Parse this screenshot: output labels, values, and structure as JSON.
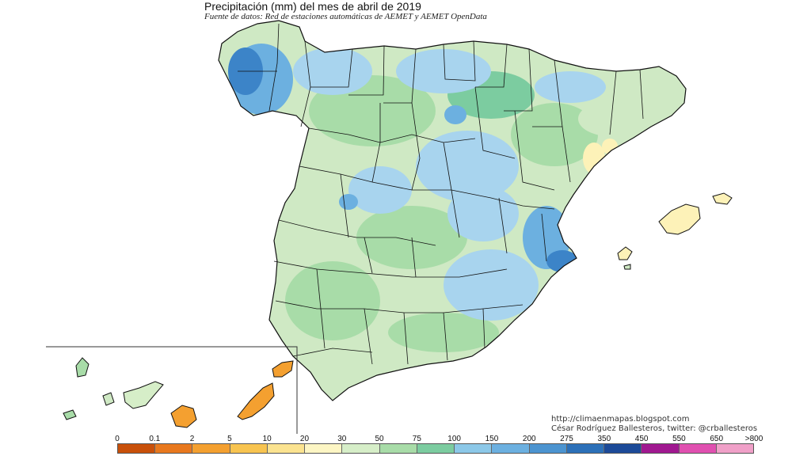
{
  "title": "Precipitación (mm) del mes de abril  de 2019",
  "subtitle": "Fuente de datos: Red de estaciones automáticas de AEMET y AEMET OpenData",
  "credits": {
    "url": "http://climaenmapas.blogspot.com",
    "author": "César Rodríguez Ballesteros, twitter: @crballesteros"
  },
  "legend": {
    "labels": [
      "0",
      "0.1",
      "2",
      "5",
      "10",
      "20",
      "30",
      "50",
      "75",
      "100",
      "150",
      "200",
      "275",
      "350",
      "450",
      "550",
      "650",
      ">800"
    ],
    "colors": [
      "#c8500a",
      "#e8781e",
      "#f4a030",
      "#f8c450",
      "#fbe390",
      "#fdf6c4",
      "#d6eec8",
      "#a8dca8",
      "#7ccca0",
      "#8cc8e8",
      "#6cb0e0",
      "#4c94d0",
      "#2c70b8",
      "#1c4a98",
      "#a01890",
      "#e050b0",
      "#f0a0c8"
    ]
  },
  "map": {
    "palette": {
      "light_green": "#cfe9c4",
      "mid_green": "#a8dca8",
      "teal": "#7ccca0",
      "light_blue": "#a8d4ee",
      "blue": "#6cb0e0",
      "dark_blue": "#3c84c8",
      "yellow": "#fdf2b8",
      "orange": "#f4a030",
      "border": "#111111"
    }
  }
}
